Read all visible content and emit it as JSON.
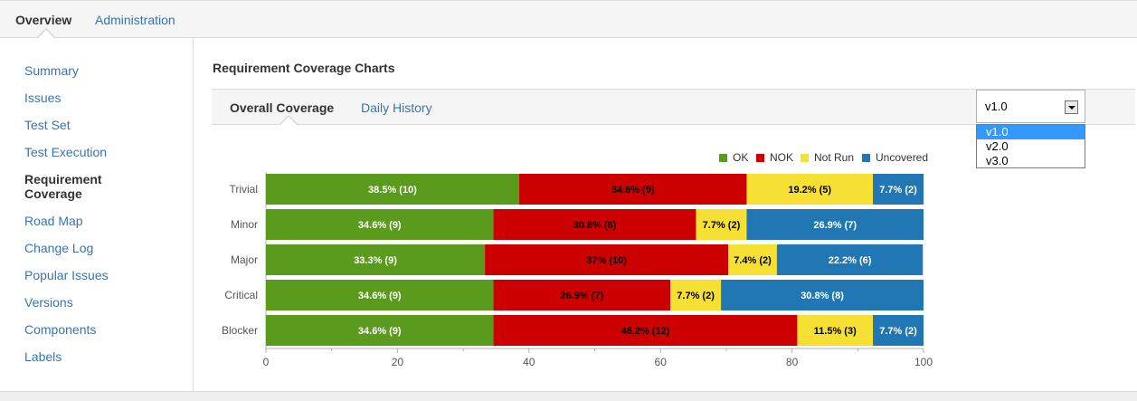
{
  "topnav": {
    "overview": "Overview",
    "administration": "Administration"
  },
  "sidebar": {
    "items": [
      {
        "label": "Summary"
      },
      {
        "label": "Issues"
      },
      {
        "label": "Test Set"
      },
      {
        "label": "Test Execution"
      },
      {
        "label": "Requirement Coverage"
      },
      {
        "label": "Road Map"
      },
      {
        "label": "Change Log"
      },
      {
        "label": "Popular Issues"
      },
      {
        "label": "Versions"
      },
      {
        "label": "Components"
      },
      {
        "label": "Labels"
      }
    ],
    "active_index": 4
  },
  "main": {
    "title": "Requirement Coverage Charts",
    "tabs": [
      {
        "label": "Overall Coverage"
      },
      {
        "label": "Daily History"
      }
    ],
    "version_select": {
      "value": "v1.0",
      "options": [
        "v1.0",
        "v2.0",
        "v3.0"
      ]
    }
  },
  "chart_data": {
    "type": "bar",
    "orientation": "horizontal",
    "stacked": true,
    "categories": [
      "Trivial",
      "Minor",
      "Major",
      "Critical",
      "Blocker"
    ],
    "series": [
      {
        "name": "OK",
        "color": "#5a9b1e",
        "values": [
          38.5,
          34.6,
          33.3,
          34.6,
          34.6
        ],
        "labels": [
          "38.5% (10)",
          "34.6% (9)",
          "33.3% (9)",
          "34.6% (9)",
          "34.6% (9)"
        ]
      },
      {
        "name": "NOK",
        "color": "#cc0000",
        "values": [
          34.6,
          30.8,
          37,
          26.9,
          46.2
        ],
        "labels": [
          "34.6% (9)",
          "30.8% (8)",
          "37% (10)",
          "26.9% (7)",
          "46.2% (12)"
        ]
      },
      {
        "name": "Not Run",
        "color": "#f6e034",
        "values": [
          19.2,
          7.7,
          7.4,
          7.7,
          11.5
        ],
        "labels": [
          "19.2% (5)",
          "7.7% (2)",
          "7.4% (2)",
          "7.7% (2)",
          "11.5% (3)"
        ]
      },
      {
        "name": "Uncovered",
        "color": "#2077b4",
        "values": [
          7.7,
          26.9,
          22.2,
          30.8,
          7.7
        ],
        "labels": [
          "7.7% (2)",
          "26.9% (7)",
          "22.2% (6)",
          "30.8% (8)",
          "7.7% (2)"
        ]
      }
    ],
    "xlim": [
      0,
      100
    ],
    "xticks": [
      0,
      20,
      40,
      60,
      80,
      100
    ],
    "legend_position": "top-right"
  }
}
